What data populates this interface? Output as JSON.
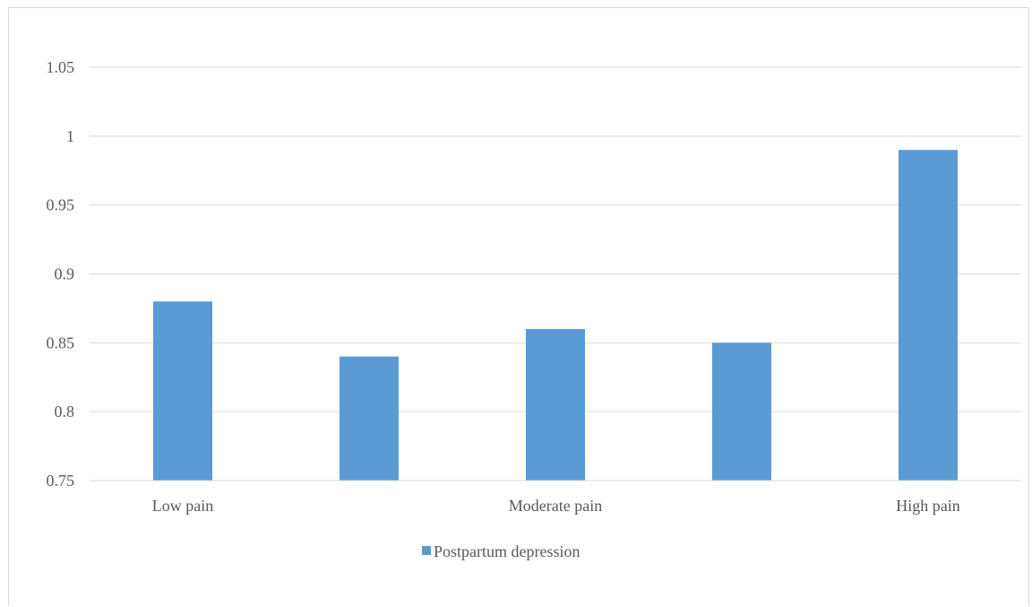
{
  "chart_data": {
    "type": "bar",
    "categories": [
      "Low pain",
      "",
      "Moderate pain",
      "",
      "High pain"
    ],
    "series": [
      {
        "name": "Postpartum depression",
        "values": [
          0.88,
          0.84,
          0.86,
          0.85,
          0.99
        ],
        "color": "#5b9bd5"
      }
    ],
    "ylim": [
      0.75,
      1.05
    ],
    "yticks": [
      "0.75",
      "0.8",
      "0.85",
      "0.9",
      "0.95",
      "1",
      "1.05"
    ],
    "ytick_values": [
      0.75,
      0.8,
      0.85,
      0.9,
      0.95,
      1.0,
      1.05
    ],
    "grid": true,
    "legend_position": "bottom",
    "title": "",
    "xlabel": "",
    "ylabel": ""
  }
}
